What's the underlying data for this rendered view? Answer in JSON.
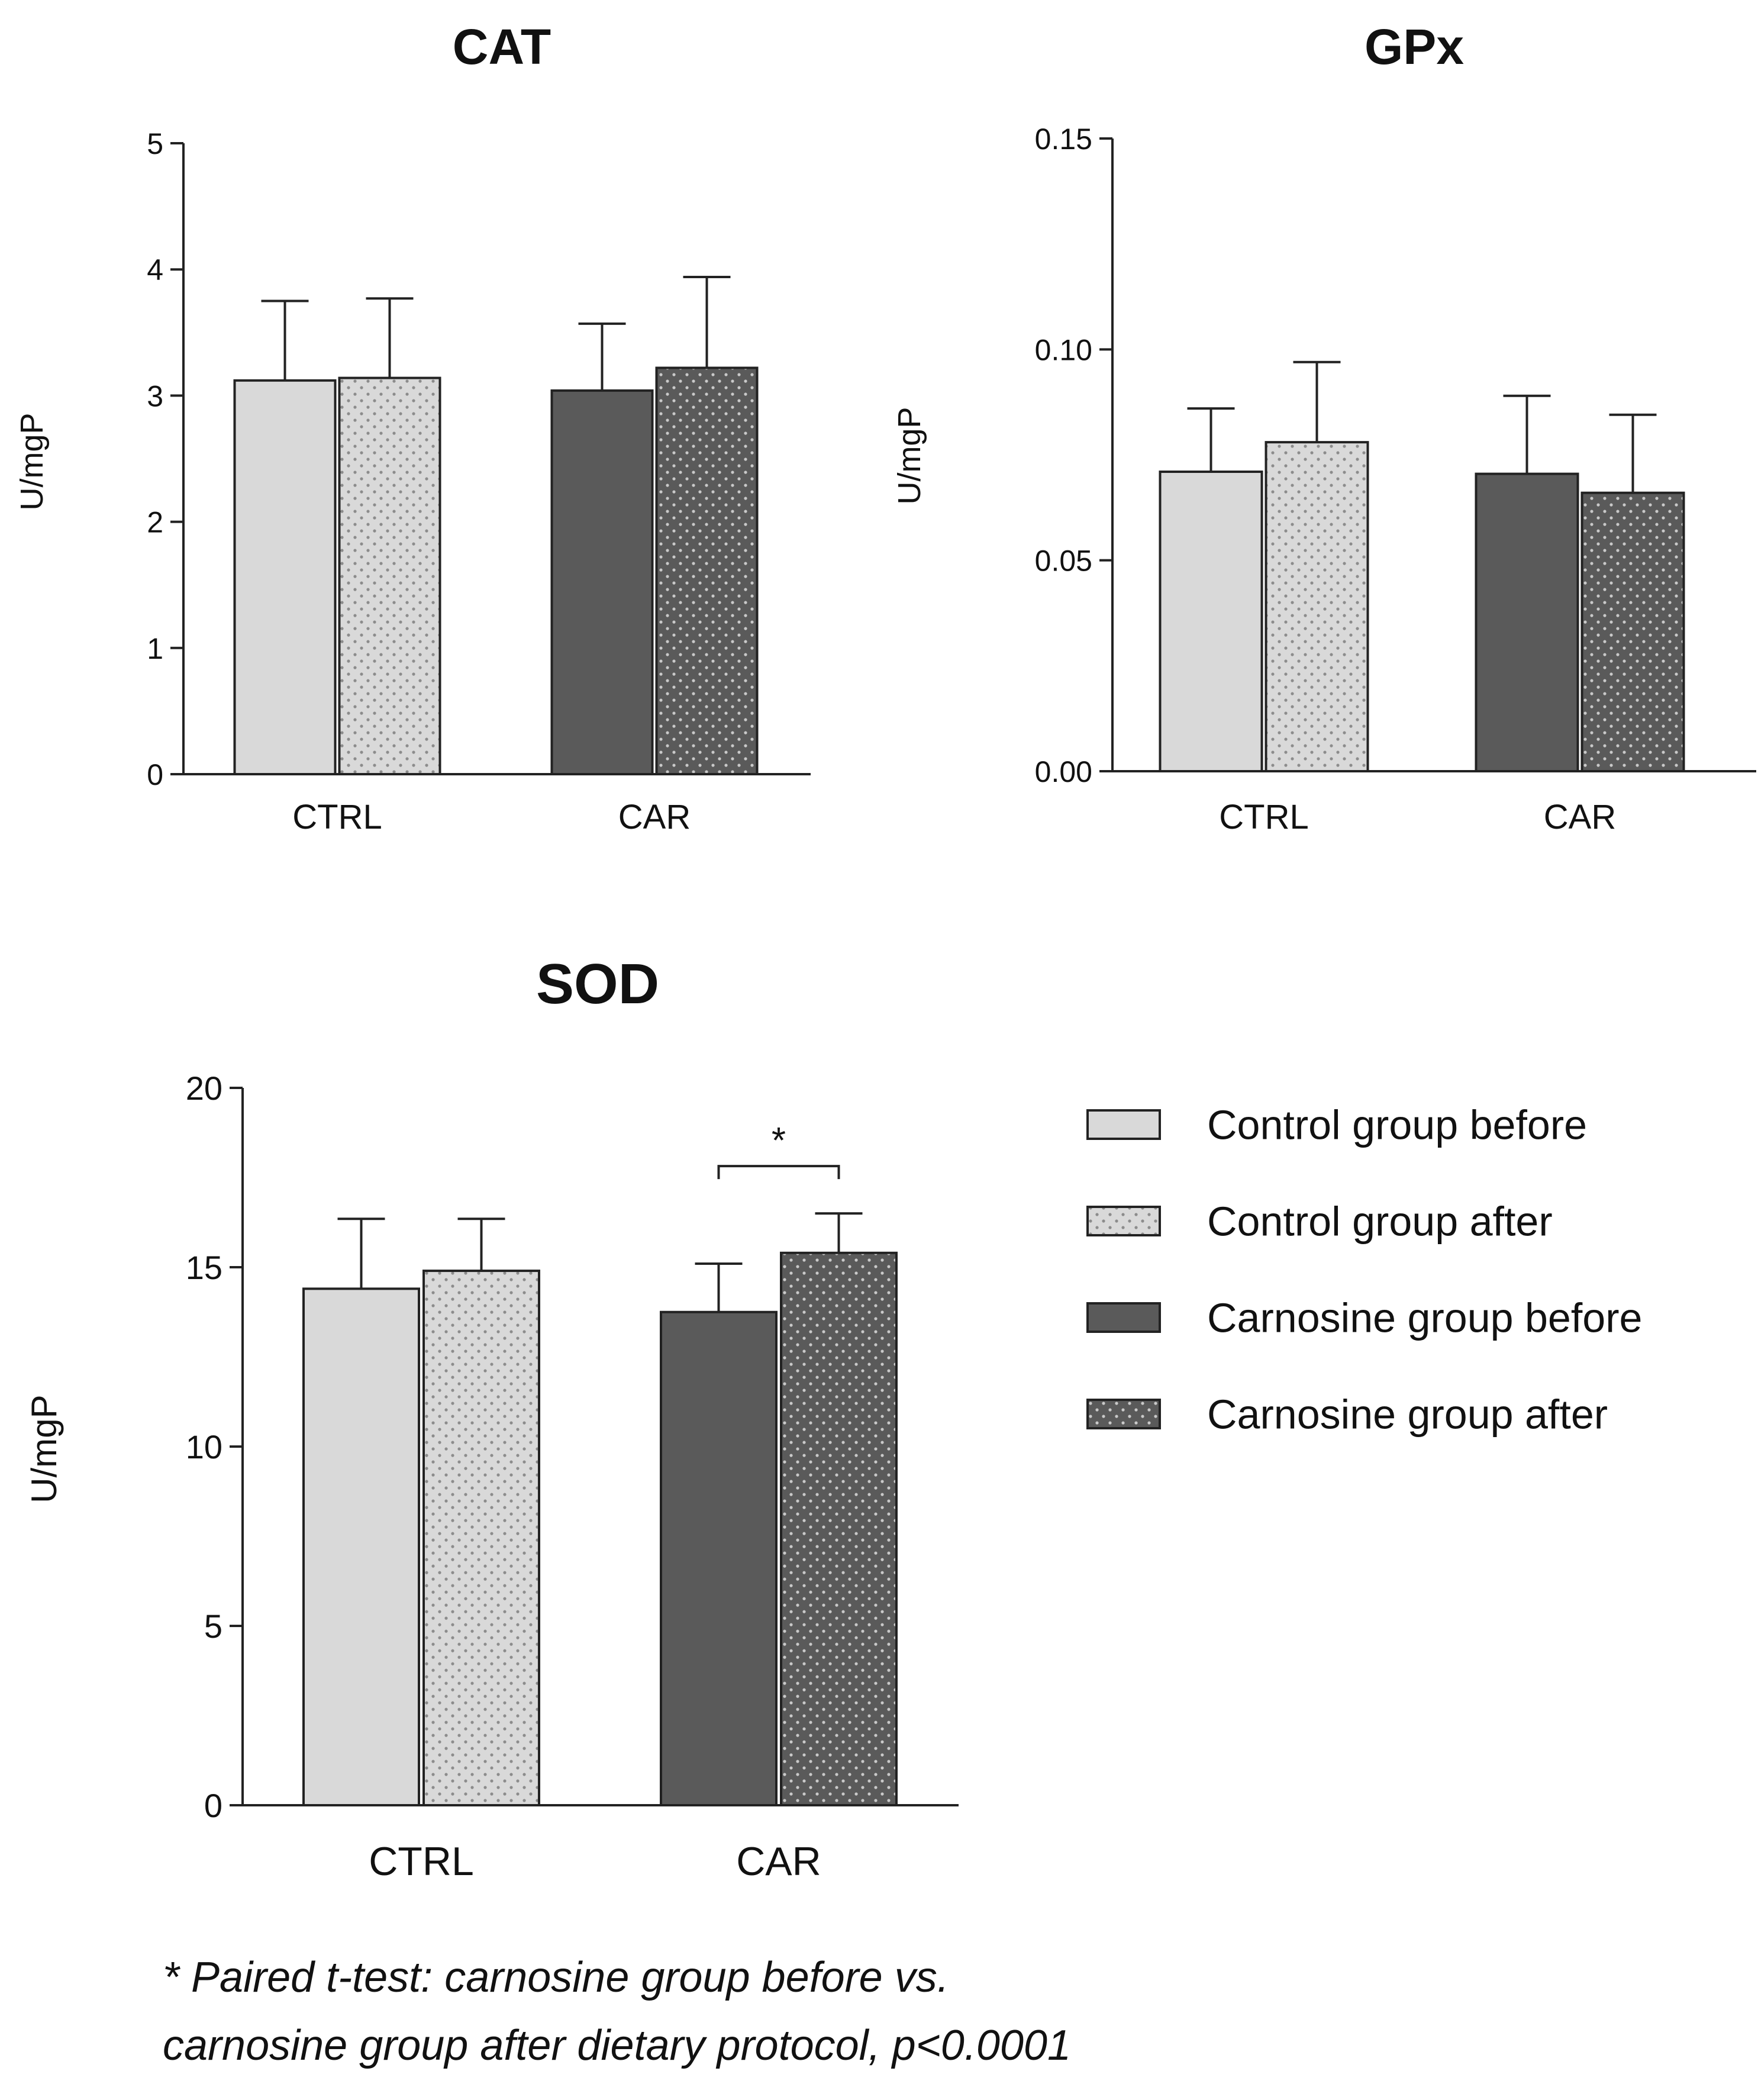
{
  "styles": {
    "colors": {
      "control_before": "#d9d9d9",
      "control_after": "#d9d9d9",
      "carnosine_before": "#5a5a5a",
      "carnosine_after": "#5a5a5a",
      "dots_light": "#8c8c8c",
      "dots_dark": "#c9c9c9",
      "axis": "#222222"
    },
    "patterns": {
      "control_before": "solid",
      "control_after": "dotted",
      "carnosine_before": "solid",
      "carnosine_after": "dotted"
    }
  },
  "legend": {
    "position": "right of SOD panel",
    "entries": [
      {
        "label": "Control group before",
        "key": "control_before"
      },
      {
        "label": "Control group after",
        "key": "control_after"
      },
      {
        "label": "Carnosine group before",
        "key": "carnosine_before"
      },
      {
        "label": "Carnosine group after",
        "key": "carnosine_after"
      }
    ]
  },
  "footnote": {
    "line1": "* Paired t-test: carnosine group before vs.",
    "line2": "carnosine group after dietary protocol, p<0.0001"
  },
  "chart_data": [
    {
      "id": "cat",
      "type": "bar",
      "title": "CAT",
      "ylabel": "U/mgP",
      "xlabel": "",
      "categories": [
        "CTRL",
        "CAR"
      ],
      "ylim": [
        0,
        5
      ],
      "yticks": [
        "0",
        "1",
        "2",
        "3",
        "4",
        "5"
      ],
      "grid": false,
      "series": [
        {
          "name": "Control group before",
          "key": "control_before",
          "values": [
            3.12,
            null
          ],
          "errors": [
            0.63,
            null
          ]
        },
        {
          "name": "Control group after",
          "key": "control_after",
          "values": [
            3.14,
            null
          ],
          "errors": [
            0.63,
            null
          ]
        },
        {
          "name": "Carnosine group before",
          "key": "carnosine_before",
          "values": [
            null,
            3.04
          ],
          "errors": [
            null,
            0.53
          ]
        },
        {
          "name": "Carnosine group after",
          "key": "carnosine_after",
          "values": [
            null,
            3.22
          ],
          "errors": [
            null,
            0.72
          ]
        }
      ]
    },
    {
      "id": "gpx",
      "type": "bar",
      "title": "GPx",
      "ylabel": "U/mgP",
      "xlabel": "",
      "categories": [
        "CTRL",
        "CAR"
      ],
      "ylim": [
        0,
        0.15
      ],
      "yticks": [
        "0.00",
        "0.05",
        "0.10",
        "0.15"
      ],
      "grid": false,
      "series": [
        {
          "name": "Control group before",
          "key": "control_before",
          "values": [
            0.071,
            null
          ],
          "errors": [
            0.015,
            null
          ]
        },
        {
          "name": "Control group after",
          "key": "control_after",
          "values": [
            0.078,
            null
          ],
          "errors": [
            0.019,
            null
          ]
        },
        {
          "name": "Carnosine group before",
          "key": "carnosine_before",
          "values": [
            null,
            0.0705
          ],
          "errors": [
            null,
            0.0185
          ]
        },
        {
          "name": "Carnosine group after",
          "key": "carnosine_after",
          "values": [
            null,
            0.066
          ],
          "errors": [
            null,
            0.0185
          ]
        }
      ]
    },
    {
      "id": "sod",
      "type": "bar",
      "title": "SOD",
      "ylabel": "U/mgP",
      "xlabel": "",
      "categories": [
        "CTRL",
        "CAR"
      ],
      "ylim": [
        0,
        20
      ],
      "yticks": [
        "0",
        "5",
        "10",
        "15",
        "20"
      ],
      "grid": false,
      "series": [
        {
          "name": "Control group before",
          "key": "control_before",
          "values": [
            14.4,
            null
          ],
          "errors": [
            1.95,
            null
          ]
        },
        {
          "name": "Control group after",
          "key": "control_after",
          "values": [
            14.9,
            null
          ],
          "errors": [
            1.45,
            null
          ]
        },
        {
          "name": "Carnosine group before",
          "key": "carnosine_before",
          "values": [
            null,
            13.75
          ],
          "errors": [
            null,
            1.35
          ]
        },
        {
          "name": "Carnosine group after",
          "key": "carnosine_after",
          "values": [
            null,
            15.4
          ],
          "errors": [
            null,
            1.1
          ]
        }
      ],
      "annotations": [
        {
          "text": "*",
          "category": "CAR",
          "between": [
            "carnosine_before",
            "carnosine_after"
          ]
        }
      ]
    }
  ]
}
